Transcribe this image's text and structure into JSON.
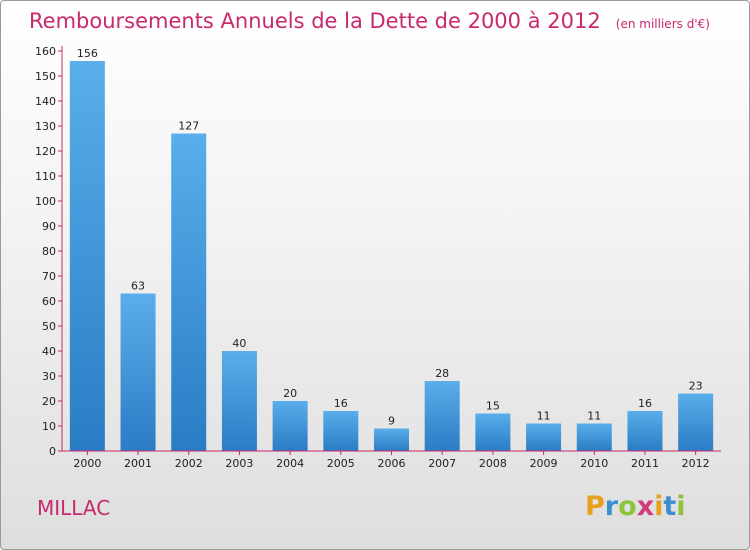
{
  "chart_data": {
    "type": "bar",
    "title": "Remboursements Annuels de la Dette de 2000 à 2012",
    "subtitle": "(en milliers d'€)",
    "categories": [
      "2000",
      "2001",
      "2002",
      "2003",
      "2004",
      "2005",
      "2006",
      "2007",
      "2008",
      "2009",
      "2010",
      "2011",
      "2012"
    ],
    "values": [
      156,
      63,
      127,
      40,
      20,
      16,
      9,
      28,
      15,
      11,
      11,
      16,
      23
    ],
    "ylim": [
      0,
      160
    ],
    "yticks": [
      0,
      10,
      20,
      30,
      40,
      50,
      60,
      70,
      80,
      90,
      100,
      110,
      120,
      130,
      140,
      150,
      160
    ],
    "grid": false,
    "bar_color": "#3b8fd6",
    "xlabel": "",
    "ylabel": ""
  },
  "commune": "MILLAC",
  "logo": {
    "text": "Proxiti",
    "letters": [
      "P",
      "r",
      "o",
      "x",
      "i",
      "t",
      "i"
    ],
    "colors": [
      "#e8a020",
      "#3a8fd0",
      "#8cc43c",
      "#d23a7a",
      "#e8a020",
      "#3a8fd0",
      "#8cc43c"
    ]
  },
  "colors": {
    "title": "#c8286e",
    "axis": "#c8286e"
  }
}
